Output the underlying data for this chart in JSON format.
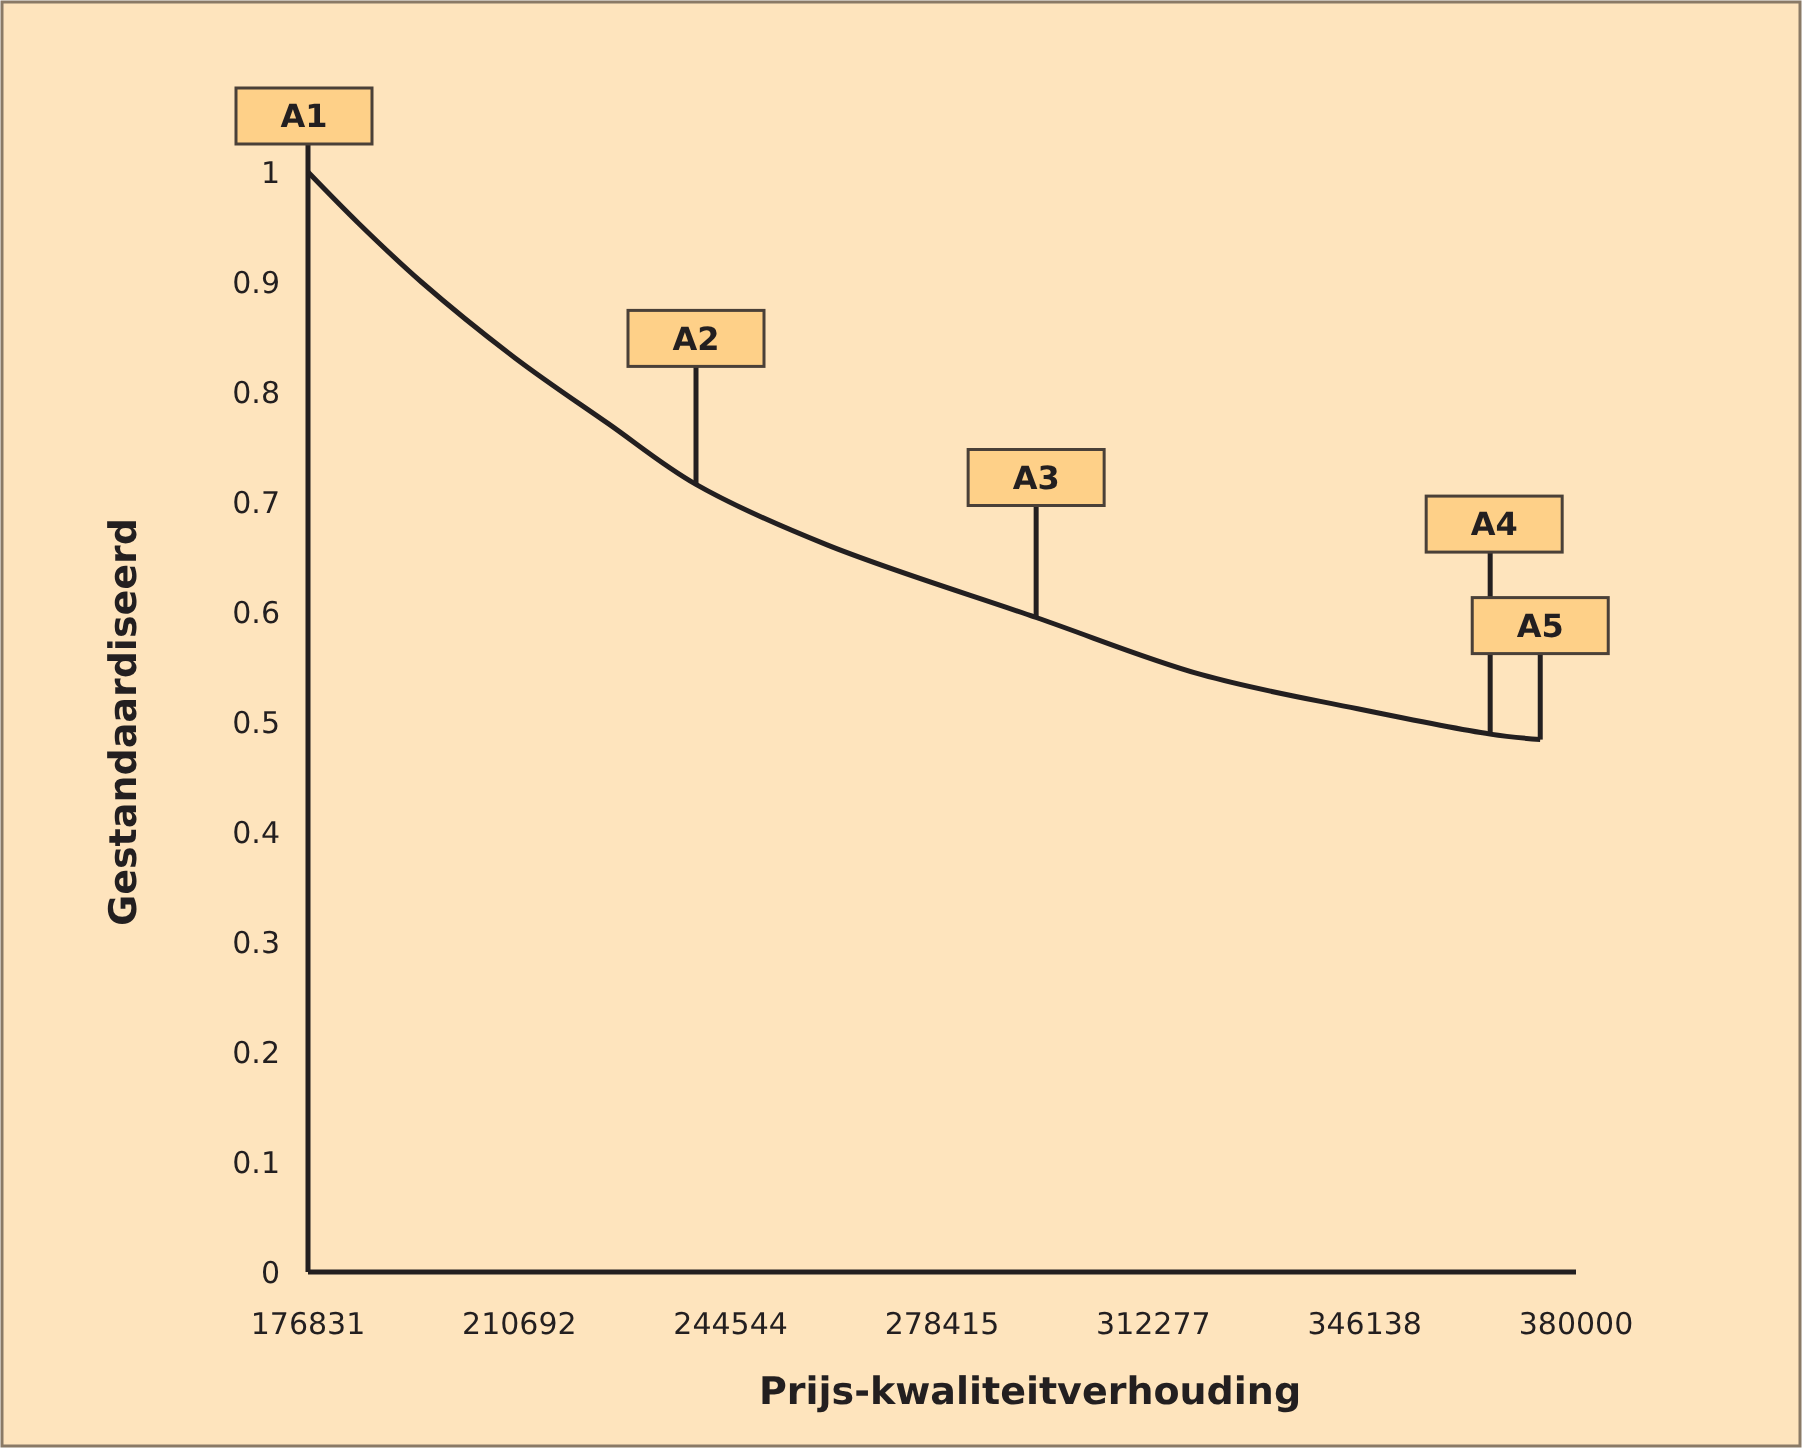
{
  "chart_data": {
    "type": "line",
    "xlabel": "Prijs-kwaliteitverhouding",
    "ylabel": "Gestandaardiseerd",
    "xlim": [
      176831,
      380000
    ],
    "xticks": [
      176831,
      210692,
      244544,
      278415,
      312277,
      346138,
      380000
    ],
    "ylim": [
      0,
      1
    ],
    "yticks": [
      0,
      0.1,
      0.2,
      0.3,
      0.4,
      0.5,
      0.6,
      0.7,
      0.8,
      0.9,
      1
    ],
    "series": [
      {
        "color": "#231f20",
        "x": [
          176831,
          185000,
          195000,
          210000,
          225000,
          239000,
          260000,
          293500,
          320000,
          345000,
          366250,
          374270
        ],
        "values": [
          1,
          0.953,
          0.9,
          0.831,
          0.771,
          0.716,
          0.661,
          0.595,
          0.543,
          0.512,
          0.489,
          0.484
        ]
      }
    ],
    "annotations": [
      {
        "text": "A1",
        "x": 176831,
        "y": 1
      },
      {
        "text": "A2",
        "x": 239000,
        "y": 0.716
      },
      {
        "text": "A3",
        "x": 293500,
        "y": 0.595
      },
      {
        "text": "A4",
        "x": 366250,
        "y": 0.489
      },
      {
        "text": "A5",
        "x": 374270,
        "y": 0.484
      }
    ],
    "grid": false,
    "marker": "none",
    "line_style": "solid"
  }
}
